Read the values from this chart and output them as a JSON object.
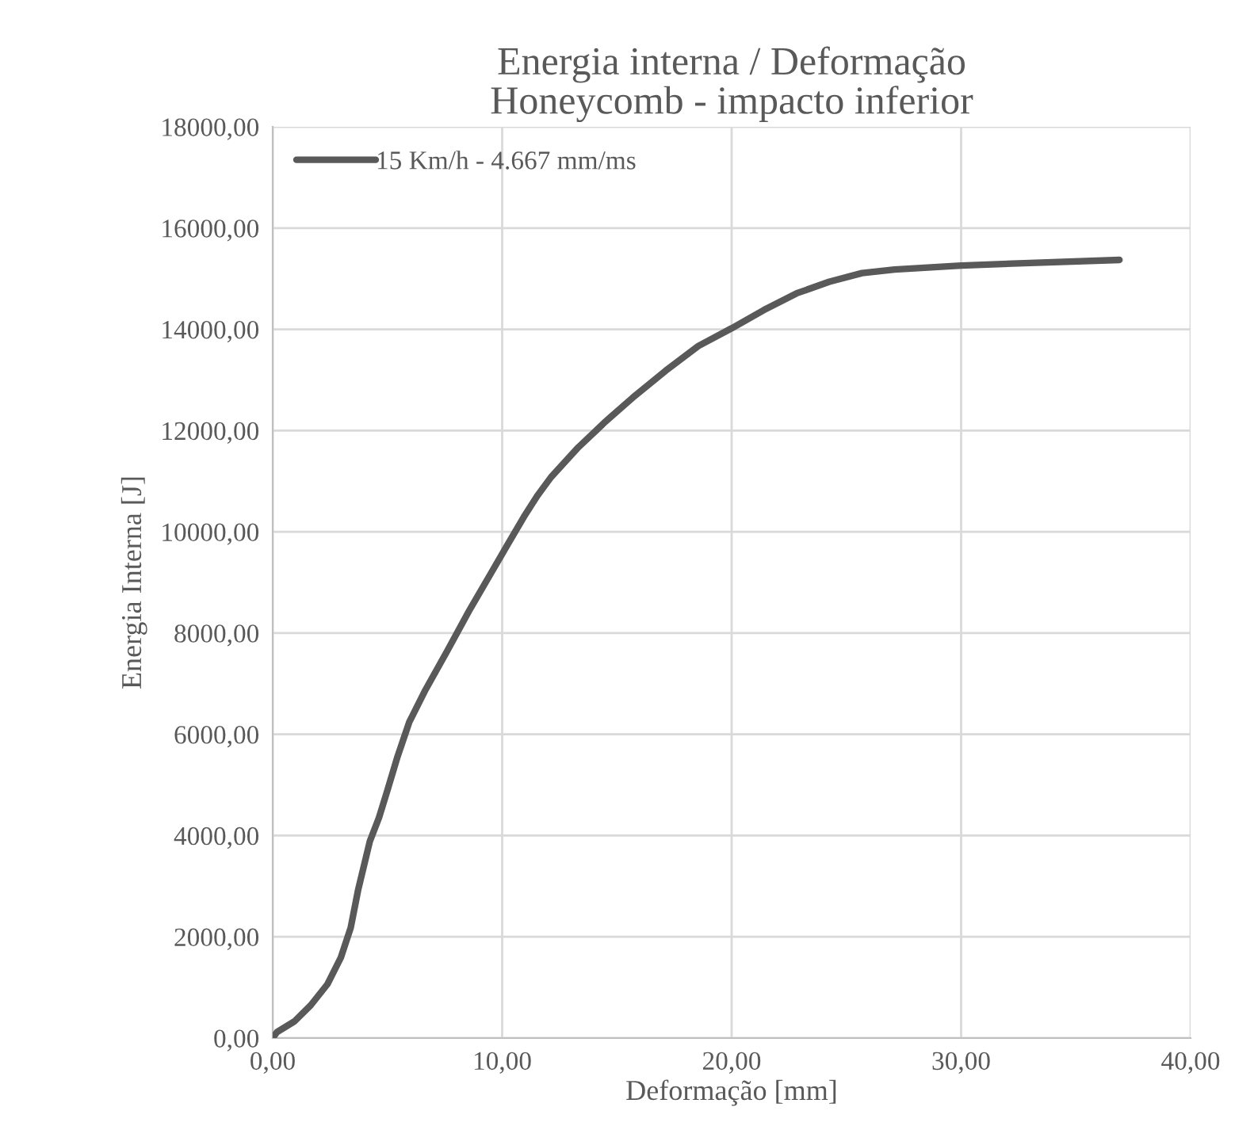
{
  "chart_data": {
    "type": "line",
    "title": "Energia interna / Deformação\nHoneycomb - impacto inferior",
    "xlabel": "Deformação [mm]",
    "ylabel": "Energia Interna [J]",
    "series": [
      {
        "name": "15 Km/h - 4.667 mm/ms",
        "color": "#595959",
        "x": [
          0,
          0.19,
          0.95,
          1.66,
          2.38,
          2.97,
          3.4,
          3.73,
          4.23,
          4.63,
          4.99,
          5.42,
          5.95,
          6.66,
          7.61,
          8.56,
          9.51,
          10.23,
          10.94,
          11.53,
          12.13,
          13.32,
          14.51,
          15.69,
          17.12,
          18.55,
          20,
          21.4,
          22.83,
          24.26,
          25.68,
          27.1,
          30,
          33,
          36.9
        ],
        "values": [
          0,
          120,
          330,
          650,
          1060,
          1590,
          2180,
          2940,
          3880,
          4350,
          4880,
          5530,
          6240,
          6880,
          7650,
          8440,
          9180,
          9740,
          10290,
          10710,
          11080,
          11670,
          12180,
          12650,
          13180,
          13670,
          14020,
          14380,
          14710,
          14940,
          15110,
          15180,
          15260,
          15310,
          15370
        ]
      }
    ],
    "xlim": [
      0,
      40
    ],
    "ylim": [
      0,
      18000
    ],
    "xticks": [
      {
        "value": 0,
        "label": "0,00"
      },
      {
        "value": 10,
        "label": "10,00"
      },
      {
        "value": 20,
        "label": "20,00"
      },
      {
        "value": 30,
        "label": "30,00"
      },
      {
        "value": 40,
        "label": "40,00"
      }
    ],
    "yticks": [
      {
        "value": 0,
        "label": "0,00"
      },
      {
        "value": 2000,
        "label": "2000,00"
      },
      {
        "value": 4000,
        "label": "4000,00"
      },
      {
        "value": 6000,
        "label": "6000,00"
      },
      {
        "value": 8000,
        "label": "8000,00"
      },
      {
        "value": 10000,
        "label": "10000,00"
      },
      {
        "value": 12000,
        "label": "12000,00"
      },
      {
        "value": 14000,
        "label": "14000,00"
      },
      {
        "value": 16000,
        "label": "16000,00"
      },
      {
        "value": 18000,
        "label": "18000,00"
      }
    ],
    "grid": true,
    "legend": "top left",
    "marker": "none",
    "line_style": "solid"
  }
}
